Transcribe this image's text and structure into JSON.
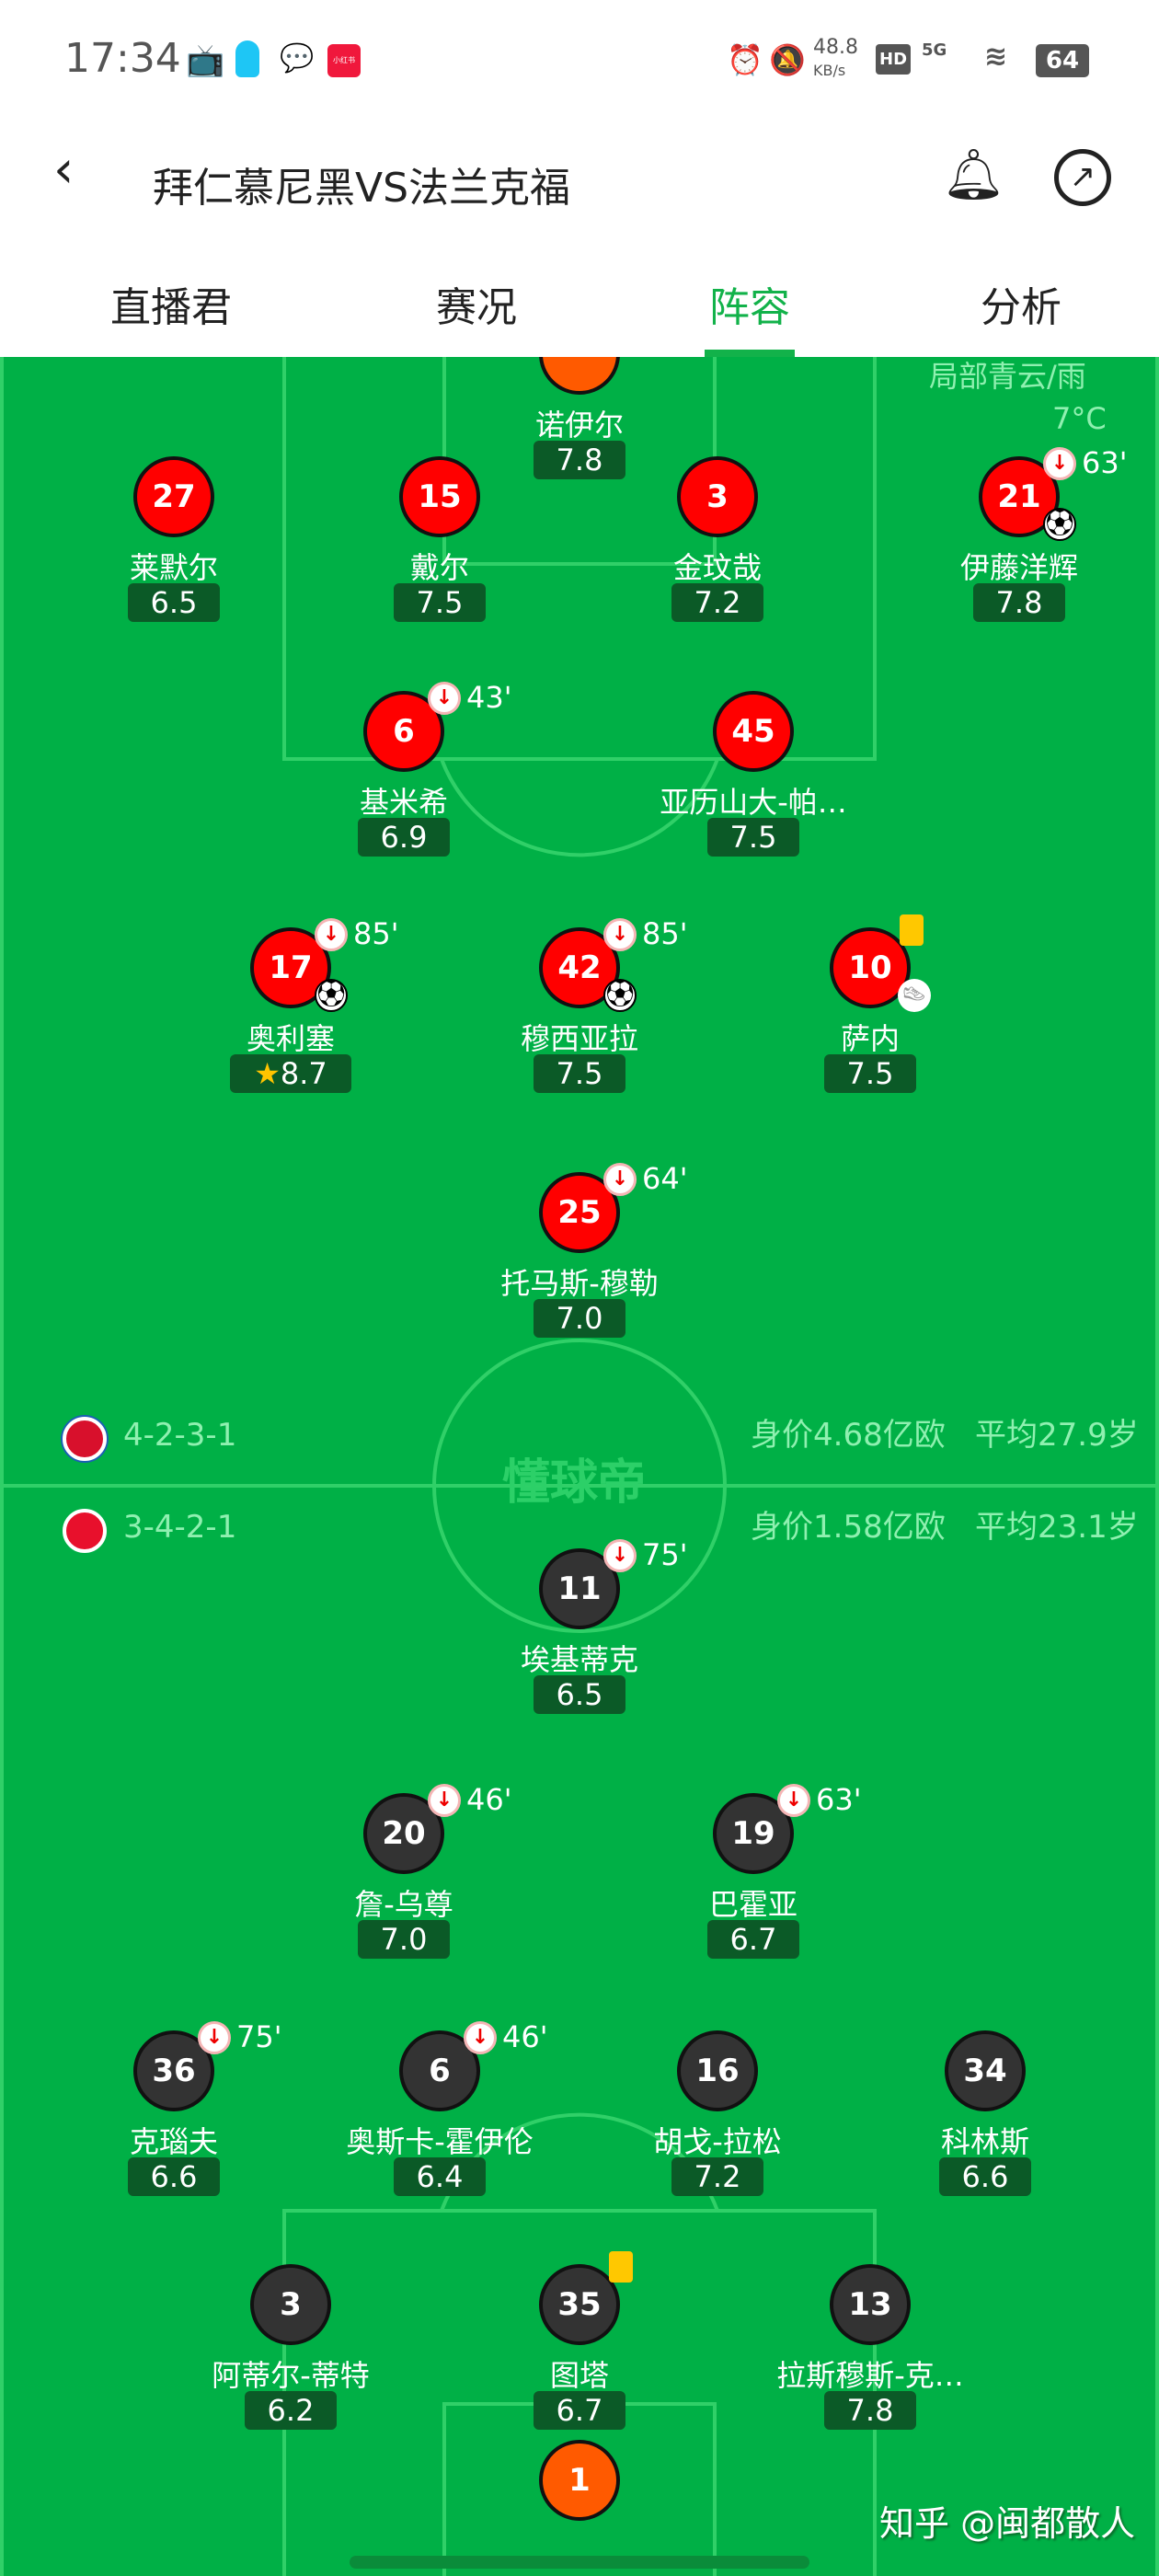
{
  "status_bar": {
    "time": "17:34",
    "net_speed": "48.8",
    "net_unit": "KB/s",
    "hd": "HD",
    "network": "5G",
    "battery": "64",
    "xhs": "小红书"
  },
  "header": {
    "title": "拜仁慕尼黑VS法兰克福",
    "back_icon": "chevron-left-icon",
    "bell_icon": "bell-icon",
    "share_icon": "share-icon"
  },
  "tabs": [
    {
      "label": "直播君"
    },
    {
      "label": "赛况"
    },
    {
      "label": "阵容",
      "active": true
    },
    {
      "label": "分析"
    }
  ],
  "weather": {
    "condition": "局部青云/雨",
    "temperature": "7°C"
  },
  "watermark_center": "懂球帝",
  "home": {
    "formation": "4-2-3-1",
    "value": "身价4.68亿欧",
    "avg_age": "平均27.9岁",
    "color": "#ff0000",
    "players": [
      {
        "num": "",
        "name": "诺伊尔",
        "rating": "7.8",
        "gk": true
      },
      {
        "num": "27",
        "name": "莱默尔",
        "rating": "6.5"
      },
      {
        "num": "15",
        "name": "戴尔",
        "rating": "7.5"
      },
      {
        "num": "3",
        "name": "金玟哉",
        "rating": "7.2"
      },
      {
        "num": "21",
        "name": "伊藤洋辉",
        "rating": "7.8",
        "sub": "63'",
        "goal": true
      },
      {
        "num": "6",
        "name": "基米希",
        "rating": "6.9",
        "sub": "43'"
      },
      {
        "num": "45",
        "name": "亚历山大-帕…",
        "rating": "7.5"
      },
      {
        "num": "17",
        "name": "奥利塞",
        "rating": "8.7",
        "sub": "85'",
        "goal": true,
        "star": true
      },
      {
        "num": "42",
        "name": "穆西亚拉",
        "rating": "7.5",
        "sub": "85'",
        "goal": true
      },
      {
        "num": "10",
        "name": "萨内",
        "rating": "7.5",
        "yellow": true,
        "assist": true
      },
      {
        "num": "25",
        "name": "托马斯-穆勒",
        "rating": "7.0",
        "sub": "64'"
      }
    ]
  },
  "away": {
    "formation": "3-4-2-1",
    "value": "身价1.58亿欧",
    "avg_age": "平均23.1岁",
    "color": "#333333",
    "players": [
      {
        "num": "11",
        "name": "埃基蒂克",
        "rating": "6.5",
        "sub": "75'"
      },
      {
        "num": "20",
        "name": "詹-乌尊",
        "rating": "7.0",
        "sub": "46'"
      },
      {
        "num": "19",
        "name": "巴霍亚",
        "rating": "6.7",
        "sub": "63'"
      },
      {
        "num": "36",
        "name": "克瑙夫",
        "rating": "6.6",
        "sub": "75'"
      },
      {
        "num": "6",
        "name": "奥斯卡-霍伊伦",
        "rating": "6.4",
        "sub": "46'"
      },
      {
        "num": "16",
        "name": "胡戈-拉松",
        "rating": "7.2"
      },
      {
        "num": "34",
        "name": "科林斯",
        "rating": "6.6"
      },
      {
        "num": "3",
        "name": "阿蒂尔-蒂特",
        "rating": "6.2"
      },
      {
        "num": "35",
        "name": "图塔",
        "rating": "6.7",
        "yellow": true
      },
      {
        "num": "13",
        "name": "拉斯穆斯-克…",
        "rating": "7.8"
      },
      {
        "num": "1",
        "name": "",
        "rating": "",
        "gk": true
      }
    ]
  },
  "watermark": "知乎 @闽都散人"
}
